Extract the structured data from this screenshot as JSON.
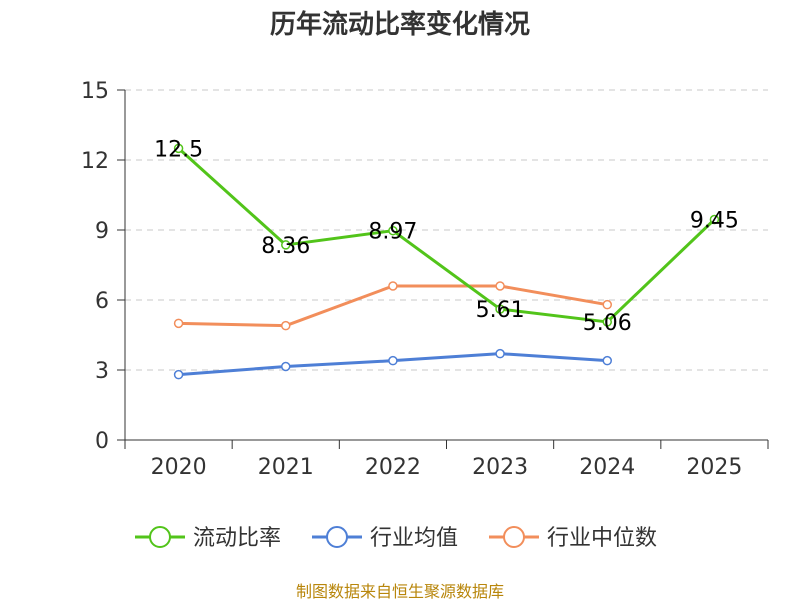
{
  "chart_data": {
    "type": "line",
    "title": "历年流动比率变化情况",
    "categories": [
      "2020",
      "2021",
      "2022",
      "2023",
      "2024",
      "2025"
    ],
    "ylim": [
      0,
      15
    ],
    "yticks": [
      "0",
      "3",
      "6",
      "9",
      "12",
      "15"
    ],
    "grid": true,
    "legend_position": "bottom",
    "series": [
      {
        "name": "流动比率",
        "color": "#52c41a",
        "values": [
          12.5,
          8.36,
          8.97,
          5.61,
          5.06,
          9.45
        ],
        "labels": [
          "12.5",
          "8.36",
          "8.97",
          "5.61",
          "5.06",
          "9.45"
        ]
      },
      {
        "name": "行业均值",
        "color": "#4e7fd6",
        "values": [
          2.8,
          3.15,
          3.4,
          3.7,
          3.4,
          null
        ]
      },
      {
        "name": "行业中位数",
        "color": "#f28e5b",
        "values": [
          5.0,
          4.9,
          6.6,
          6.6,
          5.8,
          null
        ]
      }
    ]
  },
  "footer": {
    "source": "制图数据来自恒生聚源数据库"
  }
}
